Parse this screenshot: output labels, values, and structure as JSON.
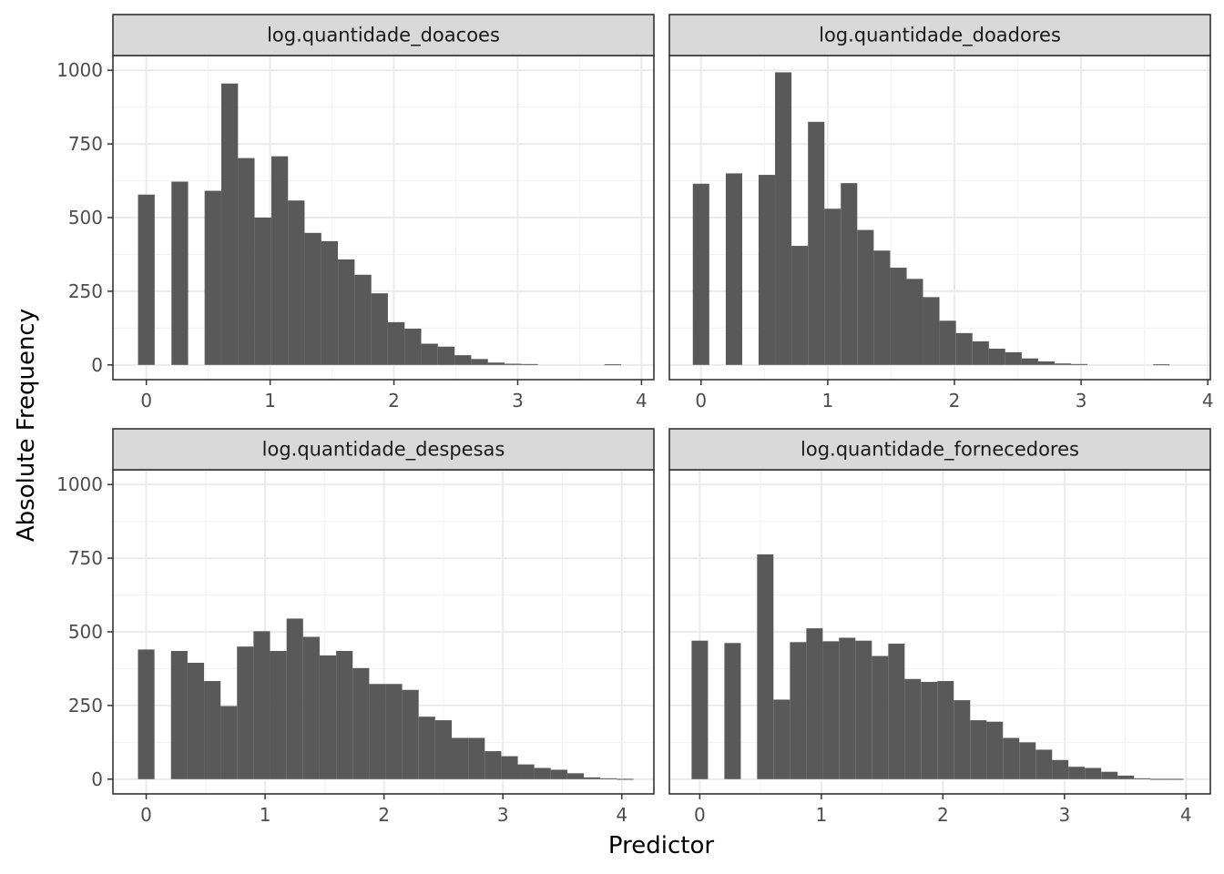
{
  "figure": {
    "xlabel": "Predictor",
    "ylabel": "Absolute Frequency"
  },
  "colors": {
    "bar": "#595959",
    "strip": "#d9d9d9",
    "border": "#333333",
    "grid_major": "#ebebeb",
    "grid_minor": "#f4f4f4",
    "tick": "#333333"
  },
  "chart_data": [
    {
      "type": "bar",
      "title": "log.quantidade_doacoes",
      "xlabel": "Predictor",
      "ylabel": "Absolute Frequency",
      "xlim": [
        -0.27,
        4.1
      ],
      "ylim": [
        -50,
        1050
      ],
      "x_ticks": [
        0,
        1,
        2,
        3,
        4
      ],
      "y_ticks": [
        0,
        250,
        500,
        750,
        1000
      ],
      "bin_width": 0.1346,
      "bin_centers": [
        0,
        0.135,
        0.27,
        0.404,
        0.538,
        0.673,
        0.807,
        0.942,
        1.077,
        1.211,
        1.346,
        1.48,
        1.615,
        1.75,
        1.884,
        2.019,
        2.153,
        2.288,
        2.423,
        2.557,
        2.692,
        2.826,
        2.961,
        3.096,
        3.23,
        3.365,
        3.5,
        3.634,
        3.769
      ],
      "values": [
        578,
        0,
        622,
        0,
        591,
        955,
        702,
        500,
        708,
        558,
        448,
        420,
        358,
        306,
        243,
        145,
        123,
        72,
        62,
        33,
        20,
        8,
        4,
        3,
        0,
        0,
        0,
        0,
        2
      ]
    },
    {
      "type": "bar",
      "title": "log.quantidade_doadores",
      "xlabel": "Predictor",
      "ylabel": "Absolute Frequency",
      "xlim": [
        -0.25,
        4.02
      ],
      "ylim": [
        -50,
        1050
      ],
      "x_ticks": [
        0,
        1,
        2,
        3,
        4
      ],
      "y_ticks": [
        0,
        250,
        500,
        750,
        1000
      ],
      "bin_width": 0.1298,
      "bin_centers": [
        0,
        0.13,
        0.26,
        0.389,
        0.519,
        0.649,
        0.779,
        0.909,
        1.038,
        1.168,
        1.298,
        1.428,
        1.558,
        1.687,
        1.817,
        1.947,
        2.077,
        2.207,
        2.336,
        2.466,
        2.596,
        2.726,
        2.856,
        2.985,
        3.115,
        3.245,
        3.375,
        3.505,
        3.634
      ],
      "values": [
        615,
        0,
        650,
        0,
        645,
        993,
        404,
        825,
        530,
        617,
        458,
        388,
        330,
        292,
        230,
        150,
        108,
        80,
        55,
        43,
        22,
        12,
        5,
        3,
        0,
        0,
        0,
        0,
        2
      ]
    },
    {
      "type": "bar",
      "title": "log.quantidade_despesas",
      "xlabel": "Predictor",
      "ylabel": "Absolute Frequency",
      "xlim": [
        -0.28,
        4.27
      ],
      "ylim": [
        -50,
        1050
      ],
      "x_ticks": [
        0,
        1,
        2,
        3,
        4
      ],
      "y_ticks": [
        0,
        250,
        500,
        750,
        1000
      ],
      "bin_width": 0.1389,
      "bin_centers": [
        0,
        0.139,
        0.278,
        0.417,
        0.556,
        0.694,
        0.833,
        0.972,
        1.111,
        1.25,
        1.389,
        1.528,
        1.667,
        1.806,
        1.944,
        2.083,
        2.222,
        2.361,
        2.5,
        2.639,
        2.778,
        2.917,
        3.056,
        3.194,
        3.333,
        3.472,
        3.611,
        3.75,
        3.889,
        4.028
      ],
      "values": [
        440,
        0,
        435,
        395,
        333,
        248,
        450,
        502,
        435,
        545,
        483,
        420,
        435,
        377,
        323,
        323,
        303,
        212,
        200,
        140,
        140,
        95,
        78,
        50,
        38,
        32,
        20,
        6,
        3,
        1
      ]
    },
    {
      "type": "bar",
      "title": "log.quantidade_fornecedores",
      "xlabel": "Predictor",
      "ylabel": "Absolute Frequency",
      "xlim": [
        -0.25,
        4.2
      ],
      "ylim": [
        -50,
        1050
      ],
      "x_ticks": [
        0,
        1,
        2,
        3,
        4
      ],
      "y_ticks": [
        0,
        250,
        500,
        750,
        1000
      ],
      "bin_width": 0.1348,
      "bin_centers": [
        0,
        0.135,
        0.27,
        0.404,
        0.539,
        0.674,
        0.809,
        0.944,
        1.078,
        1.213,
        1.348,
        1.483,
        1.618,
        1.752,
        1.887,
        2.022,
        2.157,
        2.292,
        2.426,
        2.561,
        2.696,
        2.831,
        2.965,
        3.1,
        3.235,
        3.37,
        3.505,
        3.64,
        3.774,
        3.909
      ],
      "values": [
        470,
        0,
        462,
        0,
        763,
        270,
        465,
        512,
        468,
        480,
        470,
        418,
        460,
        340,
        330,
        333,
        268,
        200,
        195,
        140,
        125,
        100,
        65,
        42,
        38,
        25,
        12,
        3,
        1,
        1
      ]
    }
  ]
}
